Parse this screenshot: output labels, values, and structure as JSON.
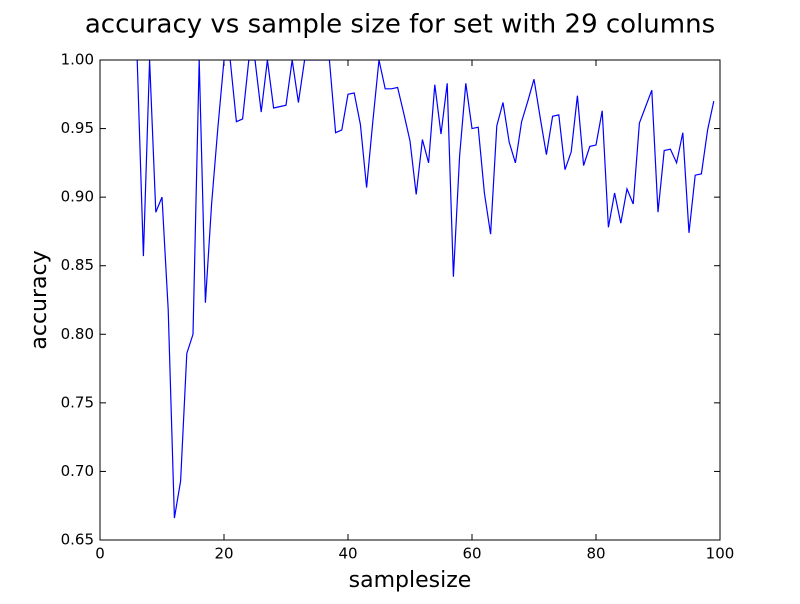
{
  "chart_data": {
    "type": "line",
    "title": "accuracy vs sample size for set with 29 columns",
    "xlabel": "samplesize",
    "ylabel": "accuracy",
    "color": "#0000ff",
    "x": [
      6,
      7,
      8,
      9,
      10,
      11,
      12,
      13,
      14,
      15,
      16,
      17,
      18,
      19,
      20,
      21,
      22,
      23,
      24,
      25,
      26,
      27,
      28,
      29,
      30,
      31,
      32,
      33,
      34,
      35,
      36,
      37,
      38,
      39,
      40,
      41,
      42,
      43,
      44,
      45,
      46,
      47,
      48,
      49,
      50,
      51,
      52,
      53,
      54,
      55,
      56,
      57,
      58,
      59,
      60,
      61,
      62,
      63,
      64,
      65,
      66,
      67,
      68,
      69,
      70,
      71,
      72,
      73,
      74,
      75,
      76,
      77,
      78,
      79,
      80,
      81,
      82,
      83,
      84,
      85,
      86,
      87,
      88,
      89,
      90,
      91,
      92,
      93,
      94,
      95,
      96,
      97,
      98,
      99
    ],
    "values": [
      1.0,
      0.857,
      1.0,
      0.889,
      0.9,
      0.818,
      0.666,
      0.693,
      0.786,
      0.8,
      1.0,
      0.823,
      0.895,
      0.95,
      1.0,
      1.0,
      0.955,
      0.957,
      1.0,
      1.0,
      0.962,
      1.0,
      0.965,
      0.966,
      0.967,
      1.0,
      0.969,
      1.0,
      1.0,
      1.0,
      1.0,
      1.0,
      0.947,
      0.949,
      0.975,
      0.976,
      0.953,
      0.907,
      0.955,
      1.0,
      0.979,
      0.979,
      0.98,
      0.961,
      0.941,
      0.902,
      0.942,
      0.925,
      0.982,
      0.946,
      0.983,
      0.842,
      0.93,
      0.983,
      0.95,
      0.951,
      0.903,
      0.873,
      0.952,
      0.969,
      0.94,
      0.925,
      0.955,
      0.97,
      0.986,
      0.958,
      0.931,
      0.959,
      0.96,
      0.92,
      0.933,
      0.974,
      0.923,
      0.937,
      0.938,
      0.963,
      0.878,
      0.903,
      0.881,
      0.906,
      0.895,
      0.954,
      0.966,
      0.978,
      0.889,
      0.934,
      0.935,
      0.925,
      0.947,
      0.874,
      0.916,
      0.917,
      0.949,
      0.97
    ],
    "xlim": [
      0,
      100
    ],
    "xticks": [
      0,
      20,
      40,
      60,
      80,
      100
    ],
    "ylim": [
      0.65,
      1.0
    ],
    "yticks": [
      0.65,
      {
        "value": 0.7,
        "label": "0.70"
      },
      0.75,
      {
        "value": 0.8,
        "label": "0.80"
      },
      0.85,
      {
        "value": 0.9,
        "label": "0.90"
      },
      0.95,
      {
        "value": 1.0,
        "label": "1.00"
      }
    ]
  }
}
